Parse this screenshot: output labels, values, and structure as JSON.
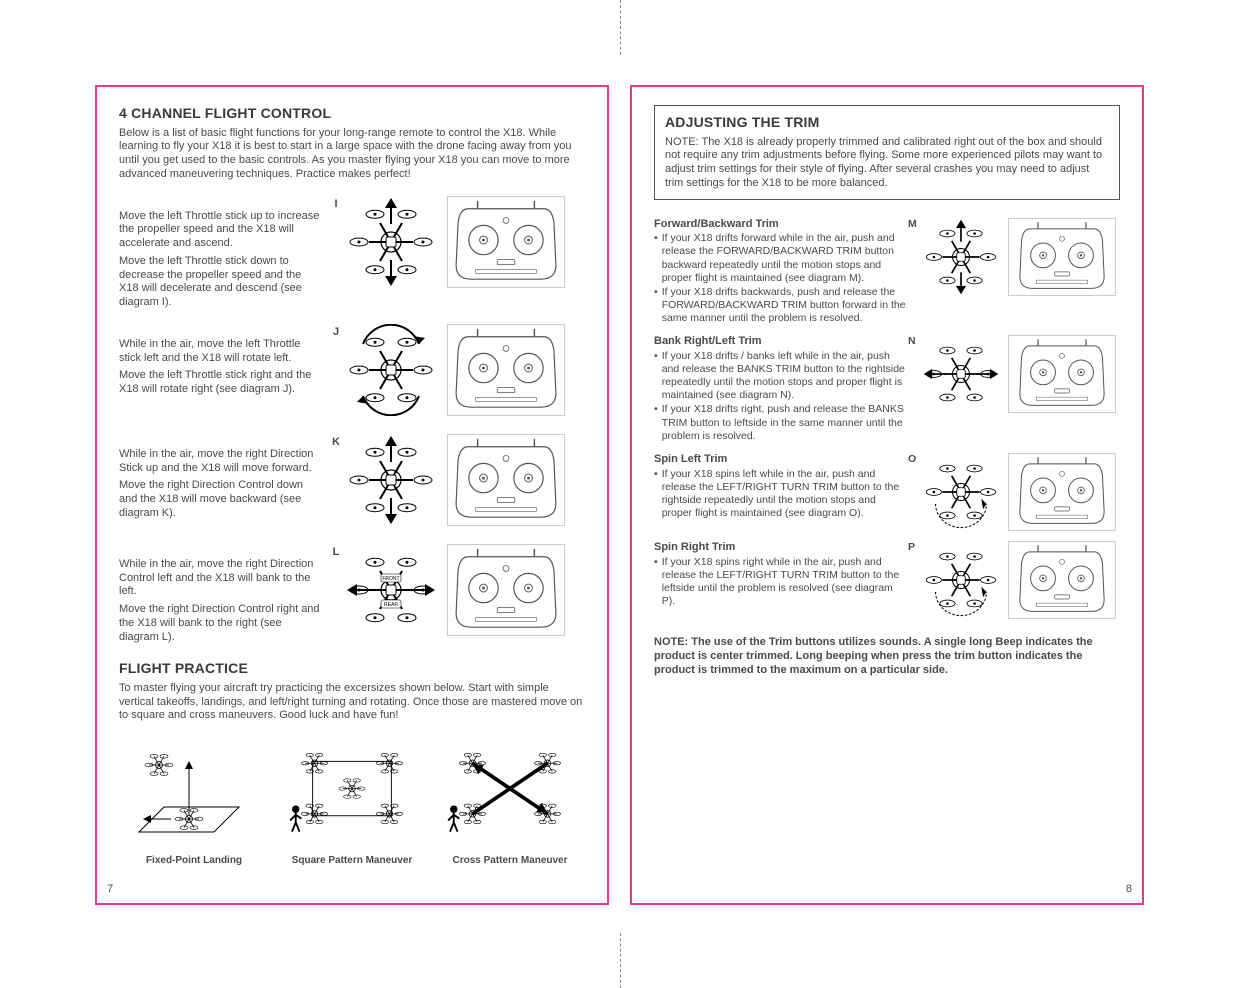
{
  "left": {
    "title1": "4 CHANNEL FLIGHT CONTROL",
    "intro1": "Below is a list of basic flight functions for your long-range remote to control the X18. While learning to fly your X18 it is best to start in a large space with the drone facing away from you until you get used to the basic controls. As you master flying your X18 you can move to more advanced maneuvering techniques. Practice makes perfect!",
    "controls": [
      {
        "label": "I",
        "p1": "Move the left Throttle stick up to increase the propeller speed  and the X18 will accelerate and ascend.",
        "p2": "Move the left Throttle stick down to decrease the propeller speed  and the X18 will decelerate and descend (see diagram I).",
        "arrows": "ud"
      },
      {
        "label": "J",
        "p1": "While in the air, move the left Throttle stick left and the X18 will rotate left.",
        "p2": "Move the left Throttle stick right and the X18 will rotate right (see diagram J).",
        "arrows": "rot"
      },
      {
        "label": "K",
        "p1": "While in the air, move the right Direction Stick up and the X18 will move forward.",
        "p2": "Move the right Direction Control down and the X18 will move backward (see diagram K).",
        "arrows": "ud"
      },
      {
        "label": "L",
        "p1": "While in the air, move the right Direction Control left and the X18 will bank to the left.",
        "p2": "Move the right Direction Control right and the X18 will bank to the right (see diagram L).",
        "arrows": "lr",
        "frontrear": true
      }
    ],
    "title2": "FLIGHT PRACTICE",
    "intro2": "To master flying your aircraft try practicing the excersizes shown below. Start with simple vertical takeoffs, landings, and left/right turning and rotating. Once those are mastered move on to square and cross maneuvers. Good luck and have fun!",
    "practice": [
      "Fixed-Point Landing",
      "Square Pattern Maneuver",
      "Cross Pattern Maneuver"
    ],
    "pageNum": "7"
  },
  "right": {
    "title": "ADJUSTING THE TRIM",
    "note": "NOTE: The X18 is already properly trimmed and calibrated right out of the box and should not require any trim adjustments before flying. Some more experienced pilots may want to adjust trim settings for their style of flying.  After several crashes you may need to adjust trim settings for the X18 to be more balanced.",
    "trims": [
      {
        "label": "M",
        "head": "Forward/Backward Trim",
        "bullets": [
          "If your X18 drifts forward while in the air, push and release the FORWARD/BACKWARD TRIM button backward repeatedly until the motion stops and proper flight is maintained (see diagram M).",
          "If your X18 drifts backwards, push and release the FORWARD/BACKWARD TRIM button forward in the same manner until the problem is resolved."
        ],
        "arrows": "ud"
      },
      {
        "label": "N",
        "head": "Bank Right/Left Trim",
        "bullets": [
          "If your X18 drifts / banks left while in the air, push and release the BANKS TRIM button to the rightside repeatedly until the motion stops and proper flight is maintained (see diagram N).",
          "If your X18 drifts right, push and release the BANKS TRIM button to leftside in the same manner until the problem is resolved."
        ],
        "arrows": "lr"
      },
      {
        "label": "O",
        "head": "Spin Left Trim",
        "bullets": [
          "If your X18 spins left while in the air, push and release the LEFT/RIGHT TURN TRIM button to the rightside repeatedly until the motion stops and proper flight is maintained (see diagram O)."
        ],
        "arrows": "spin"
      },
      {
        "label": "P",
        "head": "Spin Right Trim",
        "bullets": [
          "If your X18 spins right while in the air, push and release the LEFT/RIGHT TURN TRIM button to the leftside until the problem is resolved (see diagram P)."
        ],
        "arrows": "spin"
      }
    ],
    "bottomNote": "NOTE:  The use of the Trim buttons utilizes sounds. A single long Beep indicates the product is center trimmed. Long beeping when press the trim button indicates the product is trimmed to the maximum on a particular side.",
    "pageNum": "8"
  },
  "colors": {
    "accent": "#e63b8a",
    "text": "#4a4a4a"
  }
}
